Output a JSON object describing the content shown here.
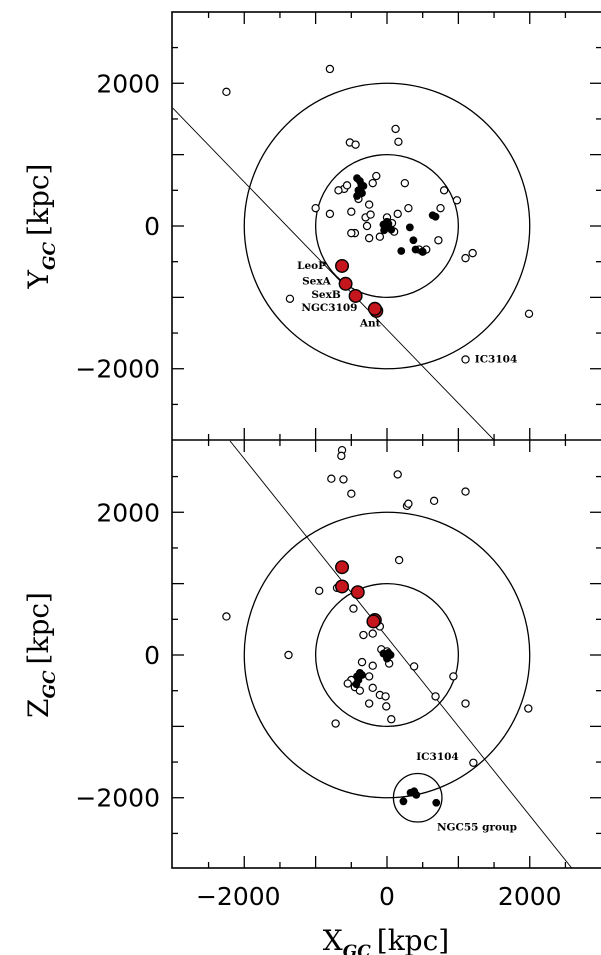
{
  "chart_data": [
    {
      "type": "scatter",
      "panel": "top",
      "xlabel": "",
      "ylabel_main": "Y",
      "ylabel_sub": "GC",
      "ylabel_unit": "[kpc]",
      "xlim": [
        -3000,
        3000
      ],
      "ylim": [
        -3000,
        3000
      ],
      "yticks": [
        {
          "value": 2000,
          "label": "2000"
        },
        {
          "value": 0,
          "label": "0"
        },
        {
          "value": -2000,
          "label": "−2000"
        }
      ],
      "circles_kpc": [
        {
          "cx": 0,
          "cy": 0,
          "r": 1000
        },
        {
          "cx": 0,
          "cy": 0,
          "r": 2000
        }
      ],
      "line": {
        "x1": -3000,
        "y1": 1650,
        "x2": 1500,
        "y2": -3000
      },
      "series": [
        {
          "marker": "open",
          "points": [
            [
              -2250,
              1880
            ],
            [
              -800,
              2200
            ],
            [
              -520,
              1170
            ],
            [
              -440,
              1140
            ],
            [
              120,
              1360
            ],
            [
              160,
              1180
            ],
            [
              -1000,
              250
            ],
            [
              -800,
              170
            ],
            [
              -600,
              520
            ],
            [
              -680,
              500
            ],
            [
              -560,
              570
            ],
            [
              -400,
              380
            ],
            [
              -250,
              300
            ],
            [
              -200,
              600
            ],
            [
              -150,
              700
            ],
            [
              -500,
              200
            ],
            [
              -300,
              120
            ],
            [
              -230,
              160
            ],
            [
              -100,
              -150
            ],
            [
              -250,
              -170
            ],
            [
              -450,
              -100
            ],
            [
              -280,
              0
            ],
            [
              0,
              120
            ],
            [
              70,
              40
            ],
            [
              100,
              -80
            ],
            [
              150,
              170
            ],
            [
              250,
              600
            ],
            [
              300,
              250
            ],
            [
              450,
              -330
            ],
            [
              500,
              -360
            ],
            [
              550,
              -330
            ],
            [
              720,
              -200
            ],
            [
              750,
              250
            ],
            [
              800,
              500
            ],
            [
              980,
              360
            ],
            [
              1100,
              -450
            ],
            [
              1200,
              -380
            ],
            [
              1990,
              -1230
            ],
            [
              -1360,
              -1020
            ],
            [
              1100,
              -1870
            ],
            [
              -500,
              -100
            ]
          ]
        },
        {
          "marker": "filled",
          "points": [
            [
              -420,
              670
            ],
            [
              -380,
              630
            ],
            [
              -360,
              580
            ],
            [
              -330,
              560
            ],
            [
              -400,
              500
            ],
            [
              -350,
              460
            ],
            [
              -420,
              420
            ],
            [
              -50,
              20
            ],
            [
              -20,
              0
            ],
            [
              0,
              -20
            ],
            [
              20,
              30
            ],
            [
              -40,
              -60
            ],
            [
              0,
              60
            ],
            [
              60,
              -50
            ],
            [
              -20,
              -10
            ],
            [
              320,
              -20
            ],
            [
              370,
              -200
            ],
            [
              400,
              -330
            ],
            [
              500,
              -360
            ],
            [
              200,
              -350
            ],
            [
              680,
              130
            ],
            [
              640,
              150
            ]
          ]
        },
        {
          "marker": "red",
          "points": [
            [
              -630,
              -560
            ],
            [
              -580,
              -810
            ],
            [
              -440,
              -980
            ],
            [
              -150,
              -1190
            ],
            [
              -170,
              -1160
            ]
          ]
        }
      ],
      "annotations": [
        {
          "text": "LeoP",
          "x": -1260,
          "y": -600
        },
        {
          "text": "SexA",
          "x": -1190,
          "y": -820
        },
        {
          "text": "SexB",
          "x": -1060,
          "y": -1010
        },
        {
          "text": "NGC3109",
          "x": -1200,
          "y": -1190
        },
        {
          "text": "Ant",
          "x": -380,
          "y": -1410
        },
        {
          "text": "IC3104",
          "x": 1230,
          "y": -1910
        }
      ]
    },
    {
      "type": "scatter",
      "panel": "bottom",
      "xlabel_main": "X",
      "xlabel_sub": "GC",
      "xlabel_unit": "[kpc]",
      "ylabel_main": "Z",
      "ylabel_sub": "GC",
      "ylabel_unit": "[kpc]",
      "xlim": [
        -3000,
        3000
      ],
      "ylim": [
        -3000,
        3000
      ],
      "xticks": [
        {
          "value": -2000,
          "label": "−2000"
        },
        {
          "value": 0,
          "label": "0"
        },
        {
          "value": 2000,
          "label": "2000"
        }
      ],
      "yticks": [
        {
          "value": 2000,
          "label": "2000"
        },
        {
          "value": 0,
          "label": "0"
        },
        {
          "value": -2000,
          "label": "−2000"
        }
      ],
      "circles_kpc": [
        {
          "cx": 0,
          "cy": 0,
          "r": 1000
        },
        {
          "cx": 0,
          "cy": 0,
          "r": 2000
        },
        {
          "cx": 430,
          "cy": -2000,
          "r": 340
        }
      ],
      "line": {
        "x1": -2200,
        "y1": 3000,
        "x2": 2600,
        "y2": -3000
      },
      "series": [
        {
          "marker": "open",
          "points": [
            [
              -630,
              2870
            ],
            [
              -640,
              2790
            ],
            [
              -780,
              2470
            ],
            [
              -610,
              2460
            ],
            [
              -500,
              2260
            ],
            [
              150,
              2530
            ],
            [
              280,
              2090
            ],
            [
              300,
              2120
            ],
            [
              660,
              2160
            ],
            [
              1100,
              2290
            ],
            [
              -2250,
              540
            ],
            [
              -1380,
              0
            ],
            [
              -950,
              900
            ],
            [
              -700,
              940
            ],
            [
              170,
              1330
            ],
            [
              -470,
              650
            ],
            [
              -330,
              280
            ],
            [
              -200,
              300
            ],
            [
              -100,
              400
            ],
            [
              -80,
              80
            ],
            [
              0,
              50
            ],
            [
              30,
              -120
            ],
            [
              380,
              -160
            ],
            [
              680,
              -580
            ],
            [
              930,
              -300
            ],
            [
              1100,
              -680
            ],
            [
              1980,
              -750
            ],
            [
              -720,
              -960
            ],
            [
              60,
              -900
            ],
            [
              -500,
              -350
            ],
            [
              -550,
              -400
            ],
            [
              -450,
              -450
            ],
            [
              -380,
              -500
            ],
            [
              -250,
              -300
            ],
            [
              -200,
              -150
            ],
            [
              -350,
              -100
            ],
            [
              -200,
              -460
            ],
            [
              -100,
              -560
            ],
            [
              -250,
              -680
            ],
            [
              -20,
              -580
            ],
            [
              -10,
              -720
            ],
            [
              1210,
              -1510
            ]
          ]
        },
        {
          "marker": "filled",
          "points": [
            [
              -420,
              -300
            ],
            [
              -380,
              -250
            ],
            [
              -400,
              -350
            ],
            [
              -350,
              -280
            ],
            [
              -430,
              -410
            ],
            [
              -50,
              20
            ],
            [
              -10,
              -10
            ],
            [
              20,
              30
            ],
            [
              0,
              -50
            ],
            [
              50,
              0
            ],
            [
              230,
              -2050
            ],
            [
              330,
              -1930
            ],
            [
              380,
              -1910
            ],
            [
              410,
              -1960
            ],
            [
              690,
              -2070
            ]
          ]
        },
        {
          "marker": "red",
          "points": [
            [
              -630,
              1230
            ],
            [
              -630,
              960
            ],
            [
              -410,
              880
            ],
            [
              -170,
              490
            ],
            [
              -190,
              470
            ]
          ]
        }
      ],
      "annotations": [
        {
          "text": "IC3104",
          "x": 410,
          "y": -1470
        },
        {
          "text": "NGC55 group",
          "x": 700,
          "y": -2460
        }
      ]
    }
  ]
}
